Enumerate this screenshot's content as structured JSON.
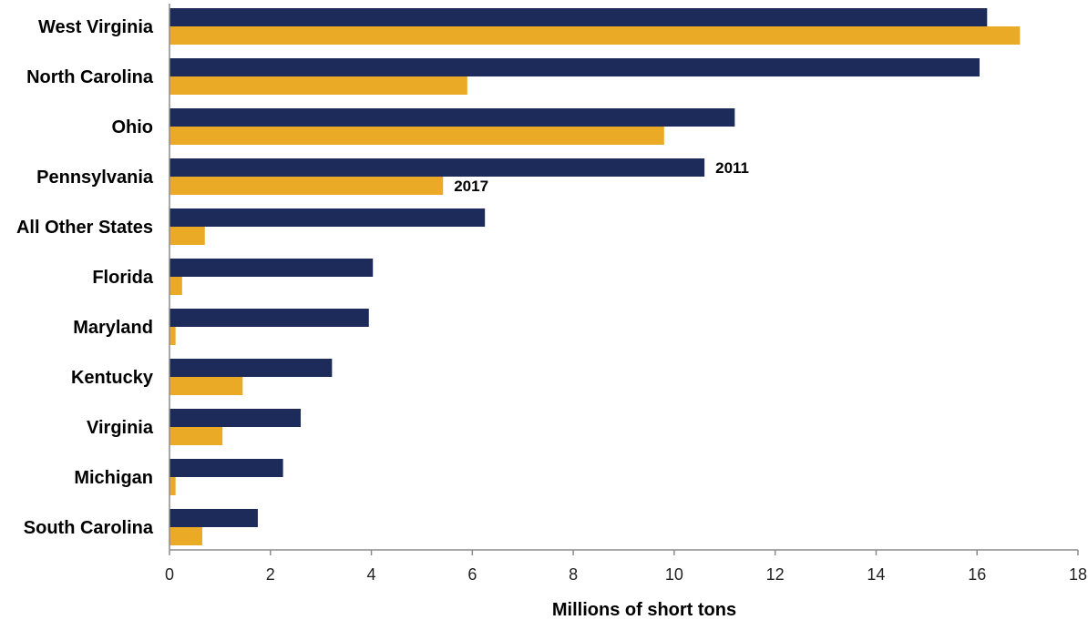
{
  "chart_data": {
    "type": "bar",
    "orientation": "horizontal",
    "title": "",
    "xlabel": "Millions of short tons",
    "ylabel": "",
    "xlim": [
      0,
      18
    ],
    "x_ticks": [
      0,
      2,
      4,
      6,
      8,
      10,
      12,
      14,
      16,
      18
    ],
    "grid": false,
    "legend": "none",
    "categories": [
      "West Virginia",
      "North Carolina",
      "Ohio",
      "Pennsylvania",
      "All Other States",
      "Florida",
      "Maryland",
      "Kentucky",
      "Virginia",
      "Michigan",
      "South Carolina"
    ],
    "series": [
      {
        "name": "2011",
        "color": "#1c2b5a",
        "values": [
          16.2,
          16.05,
          11.2,
          10.6,
          6.25,
          4.03,
          3.95,
          3.22,
          2.6,
          2.25,
          1.75
        ],
        "label_on_category": "Pennsylvania"
      },
      {
        "name": "2017",
        "color": "#eaaa26",
        "values": [
          16.85,
          5.9,
          9.8,
          5.42,
          0.7,
          0.25,
          0.12,
          1.45,
          1.05,
          0.12,
          0.65
        ],
        "label_on_category": "Pennsylvania"
      }
    ]
  }
}
